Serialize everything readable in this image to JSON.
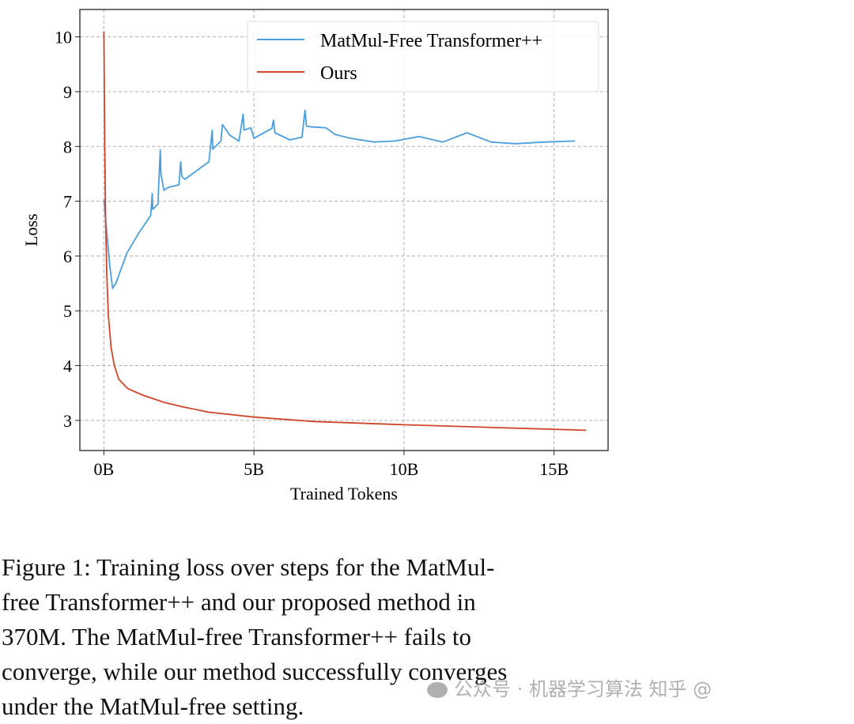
{
  "chart_data": {
    "type": "line",
    "title": "",
    "xlabel": "Trained Tokens",
    "ylabel": "Loss",
    "xlim": [
      -0.8,
      16.8
    ],
    "ylim": [
      2.45,
      10.5
    ],
    "xticks": [
      0,
      5,
      10,
      15
    ],
    "xtick_labels": [
      "0B",
      "5B",
      "10B",
      "15B"
    ],
    "yticks": [
      3,
      4,
      5,
      6,
      7,
      8,
      9,
      10
    ],
    "ytick_labels": [
      "3",
      "4",
      "5",
      "6",
      "7",
      "8",
      "9",
      "10"
    ],
    "grid": true,
    "legend_position": "top-right",
    "series": [
      {
        "name": "MatMul-Free Transformer++",
        "color": "#4a9fdc",
        "x": [
          0.0,
          0.1,
          0.2,
          0.29,
          0.4,
          0.77,
          1.2,
          1.56,
          1.61,
          1.63,
          1.8,
          1.88,
          1.9,
          2.0,
          2.13,
          2.5,
          2.56,
          2.6,
          2.7,
          3.5,
          3.61,
          3.63,
          3.9,
          3.95,
          4.2,
          4.5,
          4.64,
          4.67,
          4.9,
          5.0,
          5.6,
          5.65,
          5.7,
          6.2,
          6.6,
          6.7,
          6.75,
          6.85,
          7.4,
          7.7,
          8.2,
          9.0,
          9.7,
          10.5,
          11.3,
          12.1,
          12.9,
          13.7,
          14.7,
          15.7
        ],
        "y": [
          7.03,
          6.4,
          5.8,
          5.41,
          5.5,
          6.06,
          6.45,
          6.74,
          7.14,
          6.85,
          6.95,
          7.94,
          7.5,
          7.2,
          7.25,
          7.3,
          7.72,
          7.45,
          7.4,
          7.72,
          8.3,
          7.95,
          8.1,
          8.4,
          8.2,
          8.1,
          8.59,
          8.3,
          8.34,
          8.15,
          8.33,
          8.48,
          8.25,
          8.12,
          8.17,
          8.66,
          8.37,
          8.36,
          8.34,
          8.22,
          8.15,
          8.08,
          8.1,
          8.18,
          8.08,
          8.25,
          8.08,
          8.05,
          8.08,
          8.1
        ]
      },
      {
        "name": "Ours",
        "color": "#d0462a",
        "x": [
          0.0,
          0.03,
          0.06,
          0.1,
          0.15,
          0.24,
          0.35,
          0.5,
          0.8,
          1.3,
          2.0,
          2.6,
          3.5,
          5.0,
          7.0,
          10.0,
          13.0,
          16.07
        ],
        "y": [
          10.1,
          8.0,
          6.6,
          5.6,
          4.9,
          4.33,
          4.0,
          3.75,
          3.58,
          3.46,
          3.33,
          3.25,
          3.15,
          3.06,
          2.98,
          2.92,
          2.87,
          2.82
        ]
      }
    ]
  },
  "caption": {
    "lines": [
      "Figure 1: Training loss over steps for the MatMul-",
      "free Transformer++ and our proposed method in",
      "370M. The MatMul-free Transformer++ fails to",
      "converge, while our method successfully converges",
      "under the MatMul-free setting."
    ]
  },
  "watermark": {
    "text": "公众号 · 机器学习算法 知乎 @"
  }
}
